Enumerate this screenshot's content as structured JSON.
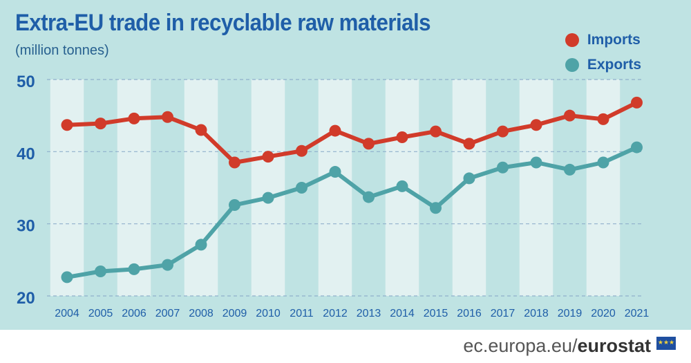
{
  "chart_data": {
    "type": "line",
    "title": "Extra-EU trade in recyclable raw materials",
    "subtitle": "(million tonnes)",
    "categories": [
      "2004",
      "2005",
      "2006",
      "2007",
      "2008",
      "2009",
      "2010",
      "2011",
      "2012",
      "2013",
      "2014",
      "2015",
      "2016",
      "2017",
      "2018",
      "2019",
      "2020",
      "2021"
    ],
    "series": [
      {
        "name": "Imports",
        "color": "#d13b2a",
        "values": [
          43.7,
          43.9,
          44.6,
          44.8,
          43.0,
          38.5,
          39.3,
          40.1,
          42.9,
          41.1,
          42.0,
          42.8,
          41.1,
          42.8,
          43.7,
          45.0,
          44.5,
          46.8
        ]
      },
      {
        "name": "Exports",
        "color": "#4fa3a7",
        "values": [
          22.6,
          23.4,
          23.7,
          24.3,
          27.1,
          32.6,
          33.6,
          35.0,
          37.2,
          33.7,
          35.2,
          32.2,
          36.3,
          37.8,
          38.5,
          37.5,
          38.5,
          40.6
        ]
      }
    ],
    "yticks": [
      20,
      30,
      40,
      50
    ],
    "ylim": [
      20,
      50
    ],
    "xlabel": "",
    "ylabel": ""
  },
  "footer": {
    "site_prefix": "ec.europa.eu/",
    "site_brand": "eurostat",
    "flag_stars": "★★★"
  }
}
